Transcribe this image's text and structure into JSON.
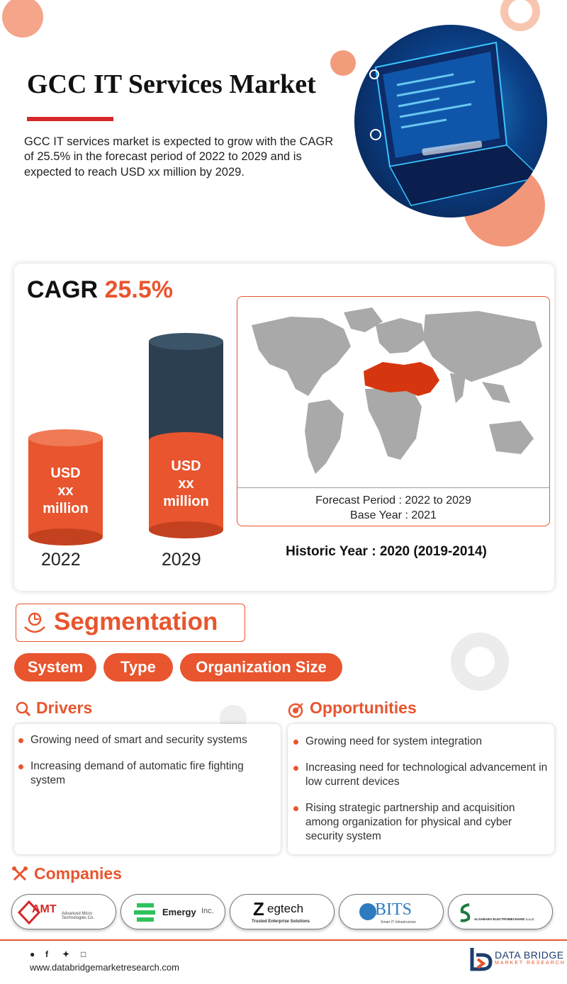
{
  "header": {
    "title": "GCC IT Services Market",
    "intro": "GCC IT services market is expected to grow with the CAGR of 25.5% in the forecast period of 2022 to 2029 and is expected to reach USD xx million by 2029."
  },
  "stats": {
    "cagr_label": "CAGR",
    "cagr_value": "25.5%",
    "bars": [
      {
        "line1": "USD",
        "line2": "xx",
        "line3": "million",
        "year": "2022"
      },
      {
        "line1": "USD",
        "line2": "xx",
        "line3": "million",
        "year": "2029"
      }
    ],
    "forecast_period": "Forecast Period : 2022 to 2029",
    "base_year": "Base Year : 2021",
    "historic_year": "Historic Year : 2020 (2019-2014)"
  },
  "segmentation": {
    "title": "Segmentation",
    "pills": [
      "System",
      "Type",
      "Organization Size"
    ]
  },
  "drivers": {
    "title": "Drivers",
    "items": [
      "Growing need of smart and security systems",
      "Increasing demand of automatic fire fighting system"
    ]
  },
  "opportunities": {
    "title": "Opportunities",
    "items": [
      "Growing need for system integration",
      "Increasing need for technological advancement in low current devices",
      "Rising strategic partnership and acquisition among organization for physical and cyber security system"
    ]
  },
  "companies": {
    "title": "Companies",
    "logos": [
      {
        "name": "AMT",
        "sub": "Advanced Micro Technologies Co."
      },
      {
        "name": "Emergy",
        "suffix": "Inc."
      },
      {
        "name": "egtech",
        "prefix": "Z",
        "sub": "Trusted Enterprise Solutions"
      },
      {
        "name": "BITS",
        "sub": "Smart IT Infrastructure"
      },
      {
        "name": "ALSABARA ELECTROMECHANIC L.L.C"
      }
    ]
  },
  "footer": {
    "url": "www.databridgemarketresearch.com",
    "brand": "DATA BRIDGE",
    "brand_sub": "MARKET RESEARCH",
    "social_icons": [
      "whatsapp-icon",
      "facebook-icon",
      "twitter-icon",
      "instagram-icon"
    ]
  },
  "colors": {
    "accent": "#e8552e",
    "title_rule": "#d62828",
    "cylinder_dark": "#2b3f50",
    "highlight_region": "#d6360f"
  }
}
